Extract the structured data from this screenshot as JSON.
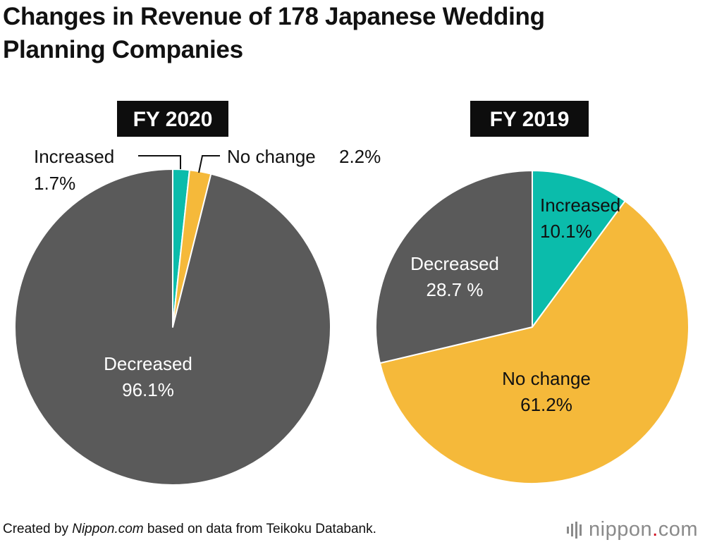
{
  "title": {
    "line1": "Changes in Revenue of 178 Japanese Wedding",
    "line2": "Planning Companies"
  },
  "colors": {
    "increased": "#0bbcab",
    "no_change": "#f5b93a",
    "decreased": "#5a5a5a",
    "header_bg": "#0d0d0d"
  },
  "chart_data": [
    {
      "type": "pie",
      "title": "FY 2020",
      "slices": [
        {
          "name": "Increased",
          "value": 1.7,
          "label_value": "1.7%"
        },
        {
          "name": "No change",
          "value": 2.2,
          "label_value": "2.2%"
        },
        {
          "name": "Decreased",
          "value": 96.1,
          "label_value": "96.1%"
        }
      ]
    },
    {
      "type": "pie",
      "title": "FY 2019",
      "slices": [
        {
          "name": "Increased",
          "value": 10.1,
          "label_value": "10.1%"
        },
        {
          "name": "No change",
          "value": 61.2,
          "label_value": "61.2%"
        },
        {
          "name": "Decreased",
          "value": 28.7,
          "label_value": "28.7 %"
        }
      ]
    }
  ],
  "footer": {
    "prefix": "Created by ",
    "site": "Nippon.com",
    "suffix": " based on data from Teikoku Databank."
  },
  "logo": {
    "name": "nippon",
    "dot": ".",
    "tld": "com"
  }
}
